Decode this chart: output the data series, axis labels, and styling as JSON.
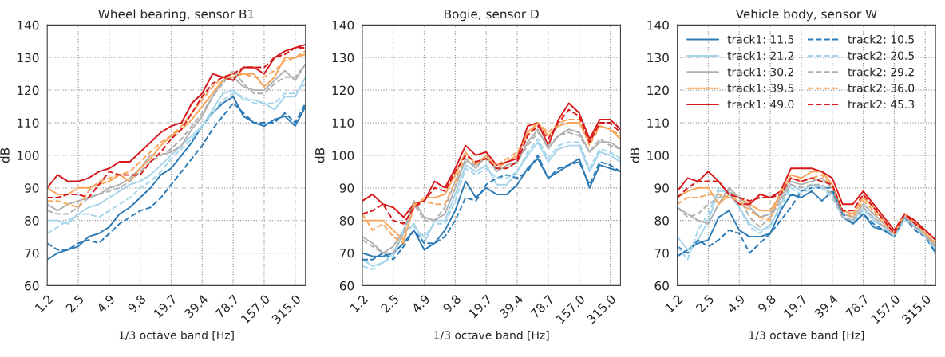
{
  "chart_data": [
    {
      "type": "line",
      "title": "Wheel bearing, sensor B1",
      "xlabel": "1/3 octave band [Hz]",
      "ylabel": "dB",
      "categories": [
        "1.2",
        null,
        null,
        "2.5",
        null,
        null,
        "4.9",
        null,
        null,
        "9.8",
        null,
        null,
        "19.7",
        null,
        null,
        "39.4",
        null,
        null,
        "78.7",
        null,
        null,
        "157.0",
        null,
        null,
        "315.0",
        null
      ],
      "ylim": [
        60,
        140
      ],
      "yticks": [
        60,
        70,
        80,
        90,
        100,
        110,
        120,
        130,
        140
      ],
      "grid": true,
      "legend": false,
      "series": [
        {
          "color": "#2c7bb6",
          "line_style": "solid",
          "values": [
            68,
            70,
            71,
            72,
            75,
            76,
            78,
            82,
            84,
            87,
            90,
            94,
            96,
            100,
            104,
            109,
            113,
            116,
            118,
            112,
            110,
            109,
            111,
            112,
            109,
            115
          ]
        },
        {
          "color": "#a6d5ea",
          "line_style": "solid",
          "values": [
            80,
            80,
            79,
            82,
            84,
            85,
            87,
            89,
            91,
            92,
            94,
            97,
            100,
            103,
            106,
            109,
            114,
            119,
            120,
            117,
            117,
            116,
            114,
            118,
            118,
            124
          ]
        },
        {
          "color": "#b0b0b0",
          "line_style": "solid",
          "values": [
            85,
            83,
            85,
            86,
            87,
            88,
            90,
            91,
            93,
            96,
            100,
            100,
            101,
            103,
            108,
            112,
            118,
            123,
            124,
            121,
            120,
            120,
            123,
            126,
            123,
            128
          ]
        },
        {
          "color": "#f7a65c",
          "line_style": "solid",
          "values": [
            90,
            88,
            88,
            90,
            90,
            91,
            92,
            94,
            92,
            96,
            99,
            103,
            106,
            108,
            111,
            115,
            119,
            123,
            124,
            125,
            125,
            121,
            124,
            130,
            130,
            131
          ]
        },
        {
          "color": "#d7191c",
          "line_style": "solid",
          "values": [
            90,
            94,
            92,
            92,
            93,
            95,
            96,
            98,
            98,
            101,
            104,
            107,
            109,
            110,
            116,
            119,
            125,
            124,
            123,
            127,
            127,
            125,
            130,
            132,
            133,
            134
          ]
        },
        {
          "color": "#2c7bb6",
          "line_style": "dashed",
          "values": [
            73,
            71,
            71,
            73,
            74,
            73,
            76,
            79,
            81,
            83,
            84,
            87,
            91,
            95,
            99,
            103,
            108,
            112,
            116,
            113,
            110,
            110,
            110,
            113,
            110,
            116
          ]
        },
        {
          "color": "#a6d5ea",
          "line_style": "dashed",
          "values": [
            76,
            78,
            80,
            82,
            82,
            81,
            83,
            85,
            87,
            90,
            92,
            95,
            99,
            102,
            105,
            109,
            113,
            117,
            119,
            118,
            116,
            116,
            116,
            119,
            119,
            122
          ]
        },
        {
          "color": "#b0b0b0",
          "line_style": "dashed",
          "values": [
            83,
            82,
            82,
            84,
            87,
            88,
            89,
            90,
            92,
            95,
            98,
            100,
            102,
            105,
            109,
            113,
            118,
            122,
            126,
            122,
            119,
            119,
            122,
            124,
            124,
            128
          ]
        },
        {
          "color": "#f7a65c",
          "line_style": "dashed",
          "values": [
            86,
            86,
            85,
            84,
            89,
            92,
            93,
            94,
            95,
            98,
            101,
            104,
            106,
            109,
            113,
            117,
            121,
            124,
            125,
            125,
            124,
            124,
            126,
            129,
            130,
            132
          ]
        },
        {
          "color": "#d7191c",
          "line_style": "dashed",
          "values": [
            87,
            87,
            88,
            88,
            87,
            91,
            95,
            94,
            94,
            94,
            98,
            101,
            105,
            108,
            113,
            118,
            122,
            124,
            125,
            127,
            127,
            127,
            130,
            131,
            133,
            133
          ]
        }
      ]
    },
    {
      "type": "line",
      "title": "Bogie, sensor D",
      "xlabel": "1/3 octave band [Hz]",
      "ylabel": "dB",
      "categories": [
        "1.2",
        null,
        null,
        "2.5",
        null,
        null,
        "4.9",
        null,
        null,
        "9.8",
        null,
        null,
        "19.7",
        null,
        null,
        "39.4",
        null,
        null,
        "78.7",
        null,
        null,
        "157.0",
        null,
        null,
        "315.0",
        null
      ],
      "ylim": [
        60,
        140
      ],
      "yticks": [
        60,
        70,
        80,
        90,
        100,
        110,
        120,
        130,
        140
      ],
      "grid": true,
      "legend": false,
      "series": [
        {
          "color": "#2c7bb6",
          "line_style": "solid",
          "values": [
            70,
            69,
            69,
            70,
            73,
            77,
            71,
            73,
            77,
            83,
            92,
            87,
            90,
            88,
            88,
            91,
            96,
            99,
            93,
            95,
            97,
            99,
            90,
            97,
            96,
            95
          ]
        },
        {
          "color": "#a6d5ea",
          "line_style": "solid",
          "values": [
            68,
            66,
            67,
            70,
            76,
            79,
            73,
            80,
            80,
            88,
            97,
            95,
            97,
            91,
            91,
            95,
            100,
            104,
            98,
            102,
            103,
            103,
            95,
            101,
            100,
            98
          ]
        },
        {
          "color": "#b0b0b0",
          "line_style": "solid",
          "values": [
            75,
            73,
            70,
            72,
            77,
            86,
            81,
            80,
            82,
            90,
            99,
            96,
            100,
            95,
            97,
            98,
            104,
            108,
            102,
            106,
            108,
            107,
            101,
            104,
            104,
            102
          ]
        },
        {
          "color": "#f7a65c",
          "line_style": "solid",
          "values": [
            80,
            80,
            80,
            77,
            74,
            84,
            87,
            87,
            88,
            94,
            101,
            97,
            100,
            96,
            98,
            100,
            107,
            110,
            106,
            109,
            110,
            110,
            104,
            109,
            108,
            105
          ]
        },
        {
          "color": "#d7191c",
          "line_style": "solid",
          "values": [
            86,
            88,
            85,
            84,
            81,
            85,
            86,
            92,
            90,
            96,
            103,
            100,
            101,
            97,
            98,
            99,
            109,
            110,
            103,
            111,
            116,
            113,
            105,
            111,
            111,
            108
          ]
        },
        {
          "color": "#2c7bb6",
          "line_style": "dashed",
          "values": [
            68,
            68,
            70,
            68,
            72,
            77,
            73,
            73,
            75,
            80,
            87,
            86,
            91,
            93,
            94,
            93,
            95,
            100,
            93,
            96,
            97,
            98,
            91,
            98,
            97,
            95
          ]
        },
        {
          "color": "#a6d5ea",
          "line_style": "dashed",
          "values": [
            66,
            65,
            67,
            69,
            77,
            78,
            75,
            79,
            79,
            86,
            96,
            94,
            96,
            93,
            93,
            95,
            101,
            105,
            99,
            103,
            104,
            104,
            96,
            102,
            101,
            99
          ]
        },
        {
          "color": "#b0b0b0",
          "line_style": "dashed",
          "values": [
            74,
            72,
            70,
            70,
            76,
            85,
            80,
            80,
            84,
            92,
            98,
            97,
            99,
            96,
            96,
            98,
            103,
            107,
            103,
            106,
            107,
            106,
            101,
            105,
            103,
            102
          ]
        },
        {
          "color": "#f7a65c",
          "line_style": "dashed",
          "values": [
            82,
            77,
            79,
            75,
            73,
            85,
            86,
            85,
            85,
            92,
            100,
            98,
            99,
            97,
            99,
            101,
            106,
            110,
            107,
            110,
            111,
            111,
            103,
            109,
            108,
            106
          ]
        },
        {
          "color": "#d7191c",
          "line_style": "dashed",
          "values": [
            82,
            83,
            85,
            80,
            79,
            84,
            86,
            90,
            89,
            95,
            100,
            98,
            99,
            96,
            96,
            98,
            106,
            109,
            105,
            110,
            114,
            112,
            104,
            110,
            110,
            107
          ]
        }
      ]
    },
    {
      "type": "line",
      "title": "Vehicle body, sensor W",
      "xlabel": "1/3 octave band [Hz]",
      "ylabel": "dB",
      "categories": [
        "1.2",
        null,
        null,
        "2.5",
        null,
        null,
        "4.9",
        null,
        null,
        "9.8",
        null,
        null,
        "19.7",
        null,
        null,
        "39.4",
        null,
        null,
        "78.7",
        null,
        null,
        "157.0",
        null,
        null,
        "315.0",
        null
      ],
      "ylim": [
        60,
        140
      ],
      "yticks": [
        60,
        70,
        80,
        90,
        100,
        110,
        120,
        130,
        140
      ],
      "grid": true,
      "legend": "top left",
      "series": [
        {
          "name": "track1: 11.5",
          "color": "#2c7bb6",
          "line_style": "solid",
          "values": [
            69,
            71,
            73,
            74,
            81,
            83,
            77,
            75,
            75,
            76,
            83,
            88,
            87,
            89,
            86,
            89,
            81,
            79,
            82,
            78,
            77,
            75,
            81,
            78,
            76,
            70
          ]
        },
        {
          "name": "track1: 21.2",
          "color": "#a6d5ea",
          "line_style": "solid",
          "values": [
            75,
            71,
            74,
            80,
            89,
            89,
            84,
            79,
            77,
            78,
            85,
            91,
            89,
            91,
            90,
            88,
            81,
            80,
            84,
            80,
            78,
            75,
            81,
            78,
            76,
            71
          ]
        },
        {
          "name": "track1: 30.2",
          "color": "#b0b0b0",
          "line_style": "solid",
          "values": [
            84,
            82,
            80,
            79,
            85,
            90,
            87,
            84,
            81,
            82,
            87,
            92,
            91,
            92,
            93,
            90,
            82,
            81,
            85,
            82,
            79,
            75,
            81,
            79,
            76,
            72
          ]
        },
        {
          "name": "track1: 39.5",
          "color": "#f7a65c",
          "line_style": "solid",
          "values": [
            87,
            89,
            90,
            90,
            85,
            88,
            87,
            85,
            83,
            83,
            88,
            94,
            93,
            95,
            95,
            91,
            83,
            82,
            87,
            84,
            80,
            76,
            81,
            80,
            76,
            73
          ]
        },
        {
          "name": "track1: 49.0",
          "color": "#d7191c",
          "line_style": "solid",
          "values": [
            89,
            93,
            92,
            95,
            92,
            88,
            85,
            85,
            88,
            87,
            89,
            96,
            96,
            96,
            95,
            93,
            85,
            85,
            89,
            85,
            81,
            77,
            82,
            80,
            77,
            74
          ]
        },
        {
          "name": "track2: 10.5",
          "color": "#2c7bb6",
          "line_style": "dashed",
          "values": [
            72,
            70,
            74,
            72,
            74,
            77,
            76,
            70,
            73,
            76,
            80,
            84,
            89,
            90,
            90,
            90,
            82,
            79,
            82,
            79,
            77,
            75,
            81,
            77,
            75,
            70
          ]
        },
        {
          "name": "track2: 20.5",
          "color": "#a6d5ea",
          "line_style": "dashed",
          "values": [
            72,
            68,
            77,
            82,
            90,
            88,
            84,
            78,
            76,
            79,
            84,
            90,
            88,
            90,
            90,
            87,
            81,
            80,
            83,
            81,
            78,
            75,
            80,
            78,
            75,
            71
          ]
        },
        {
          "name": "track2: 29.2",
          "color": "#b0b0b0",
          "line_style": "dashed",
          "values": [
            84,
            81,
            82,
            85,
            87,
            89,
            87,
            81,
            78,
            81,
            86,
            91,
            90,
            91,
            91,
            88,
            81,
            80,
            84,
            81,
            78,
            76,
            81,
            78,
            75,
            72
          ]
        },
        {
          "name": "track2: 36.0",
          "color": "#f7a65c",
          "line_style": "dashed",
          "values": [
            85,
            87,
            87,
            88,
            88,
            87,
            86,
            83,
            81,
            80,
            89,
            93,
            92,
            93,
            94,
            90,
            83,
            81,
            86,
            83,
            79,
            76,
            82,
            79,
            76,
            73
          ]
        },
        {
          "name": "track2: 45.3",
          "color": "#d7191c",
          "line_style": "dashed",
          "values": [
            87,
            90,
            92,
            92,
            92,
            88,
            87,
            86,
            87,
            87,
            88,
            93,
            92,
            93,
            92,
            91,
            83,
            83,
            88,
            84,
            80,
            76,
            82,
            79,
            77,
            74
          ]
        }
      ]
    }
  ]
}
